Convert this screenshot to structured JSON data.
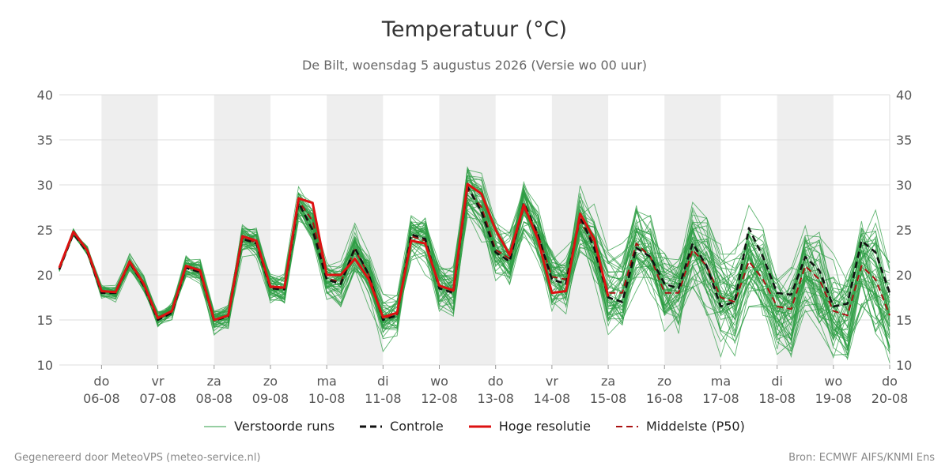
{
  "title": "Temperatuur (°C)",
  "subtitle": "De Bilt, woensdag  5 augustus 2026 (Versie wo 00 uur)",
  "footer_left": "Gegenereerd door MeteoVPS (meteo-service.nl)",
  "footer_right": "Bron: ECMWF AIFS/KNMI Ens",
  "legend": [
    {
      "label": "Verstoorde runs",
      "color": "#2e9e44",
      "style": "thin"
    },
    {
      "label": "Controle",
      "color": "#111111",
      "style": "dashed"
    },
    {
      "label": "Hoge resolutie",
      "color": "#dd1111",
      "style": "solid"
    },
    {
      "label": "Middelste (P50)",
      "color": "#aa1111",
      "style": "dashed"
    }
  ],
  "chart_data": {
    "type": "line",
    "x_unit": "days after 2026-08-05 00:00 (12-hour steps)",
    "x": [
      0.25,
      0.5,
      0.75,
      1.0,
      1.25,
      1.5,
      1.75,
      2.0,
      2.25,
      2.5,
      2.75,
      3.0,
      3.25,
      3.5,
      3.75,
      4.0,
      4.25,
      4.5,
      4.75,
      5.0,
      5.25,
      5.5,
      5.75,
      6.0,
      6.25,
      6.5,
      6.75,
      7.0,
      7.25,
      7.5,
      7.75,
      8.0,
      8.25,
      8.5,
      8.75,
      9.0,
      9.25,
      9.5,
      9.75,
      10.0,
      10.25,
      10.5,
      10.75,
      11.0,
      11.25,
      11.5,
      11.75,
      12.0,
      12.25,
      12.5,
      12.75,
      13.0,
      13.25,
      13.5,
      13.75,
      14.0,
      14.25,
      14.5,
      14.75,
      15.0
    ],
    "ylim": [
      10,
      40
    ],
    "yticks": [
      10,
      15,
      20,
      25,
      30,
      35,
      40
    ],
    "grid": true,
    "legend_position": "bottom",
    "xticks": [
      {
        "day": "do",
        "date": "06-08",
        "x": 1
      },
      {
        "day": "vr",
        "date": "07-08",
        "x": 2
      },
      {
        "day": "za",
        "date": "08-08",
        "x": 3
      },
      {
        "day": "zo",
        "date": "09-08",
        "x": 4
      },
      {
        "day": "ma",
        "date": "10-08",
        "x": 5
      },
      {
        "day": "di",
        "date": "11-08",
        "x": 6
      },
      {
        "day": "wo",
        "date": "12-08",
        "x": 7
      },
      {
        "day": "do",
        "date": "13-08",
        "x": 8
      },
      {
        "day": "vr",
        "date": "14-08",
        "x": 9
      },
      {
        "day": "za",
        "date": "15-08",
        "x": 10
      },
      {
        "day": "zo",
        "date": "16-08",
        "x": 11
      },
      {
        "day": "ma",
        "date": "17-08",
        "x": 12
      },
      {
        "day": "di",
        "date": "18-08",
        "x": 13
      },
      {
        "day": "wo",
        "date": "19-08",
        "x": 14
      },
      {
        "day": "do",
        "date": "20-08",
        "x": 15
      }
    ],
    "weekend_bands": [
      [
        1,
        2
      ],
      [
        3,
        4
      ],
      [
        5,
        6
      ],
      [
        7,
        8
      ],
      [
        9,
        10
      ],
      [
        11,
        12
      ],
      [
        13,
        14
      ]
    ],
    "series": [
      {
        "name": "Hoge resolutie",
        "color": "#dd1111",
        "dash": "",
        "values": [
          20.8,
          24.8,
          22.7,
          18.2,
          18.1,
          21.5,
          19.0,
          15.2,
          16.0,
          21.0,
          20.5,
          15.0,
          15.5,
          24.3,
          23.8,
          18.7,
          18.6,
          28.5,
          28.0,
          20.0,
          20.0,
          21.8,
          19.5,
          15.3,
          15.8,
          23.8,
          23.5,
          18.8,
          18.3,
          30.1,
          29.0,
          25.0,
          22.2,
          27.8,
          24.0,
          18.0,
          18.2,
          26.8,
          24.0,
          17.6,
          null,
          null,
          null,
          null,
          null,
          null,
          null,
          null,
          null,
          null,
          null,
          null,
          null,
          null,
          null,
          null,
          null,
          null,
          null,
          null
        ]
      },
      {
        "name": "Controle",
        "color": "#111111",
        "dash": "8,5",
        "values": [
          20.6,
          24.6,
          22.5,
          18.0,
          18.0,
          21.4,
          18.8,
          15.0,
          15.8,
          20.8,
          20.3,
          14.9,
          15.4,
          24.0,
          23.5,
          18.5,
          18.4,
          28.0,
          25.0,
          19.5,
          19.0,
          23.0,
          20.0,
          15.0,
          15.5,
          24.5,
          24.0,
          18.5,
          18.0,
          29.8,
          27.0,
          22.5,
          21.5,
          28.0,
          24.5,
          19.5,
          19.0,
          26.5,
          23.0,
          17.5,
          17.0,
          23.0,
          22.0,
          19.0,
          18.5,
          23.5,
          21.0,
          16.5,
          17.0,
          25.2,
          22.0,
          18.0,
          17.8,
          22.0,
          20.5,
          16.5,
          16.8,
          23.8,
          22.5,
          18.0
        ]
      },
      {
        "name": "Middelste (P50)",
        "color": "#aa1111",
        "dash": "8,5",
        "values": [
          20.7,
          24.7,
          22.6,
          18.2,
          18.0,
          21.3,
          18.9,
          15.1,
          15.9,
          20.9,
          20.4,
          15.0,
          15.5,
          24.1,
          23.6,
          18.6,
          18.5,
          28.2,
          26.0,
          19.6,
          19.2,
          22.8,
          20.0,
          15.2,
          15.6,
          24.3,
          23.8,
          18.8,
          18.2,
          29.5,
          27.5,
          22.8,
          21.8,
          27.5,
          24.5,
          19.8,
          19.5,
          26.0,
          23.5,
          18.0,
          18.0,
          23.5,
          22.0,
          18.0,
          18.0,
          22.8,
          21.0,
          17.5,
          17.0,
          21.5,
          19.5,
          16.5,
          16.2,
          21.0,
          19.5,
          16.0,
          15.5,
          21.0,
          19.5,
          15.5
        ]
      }
    ],
    "ensemble_count": 50,
    "ensemble_color": "#2e9e44"
  }
}
